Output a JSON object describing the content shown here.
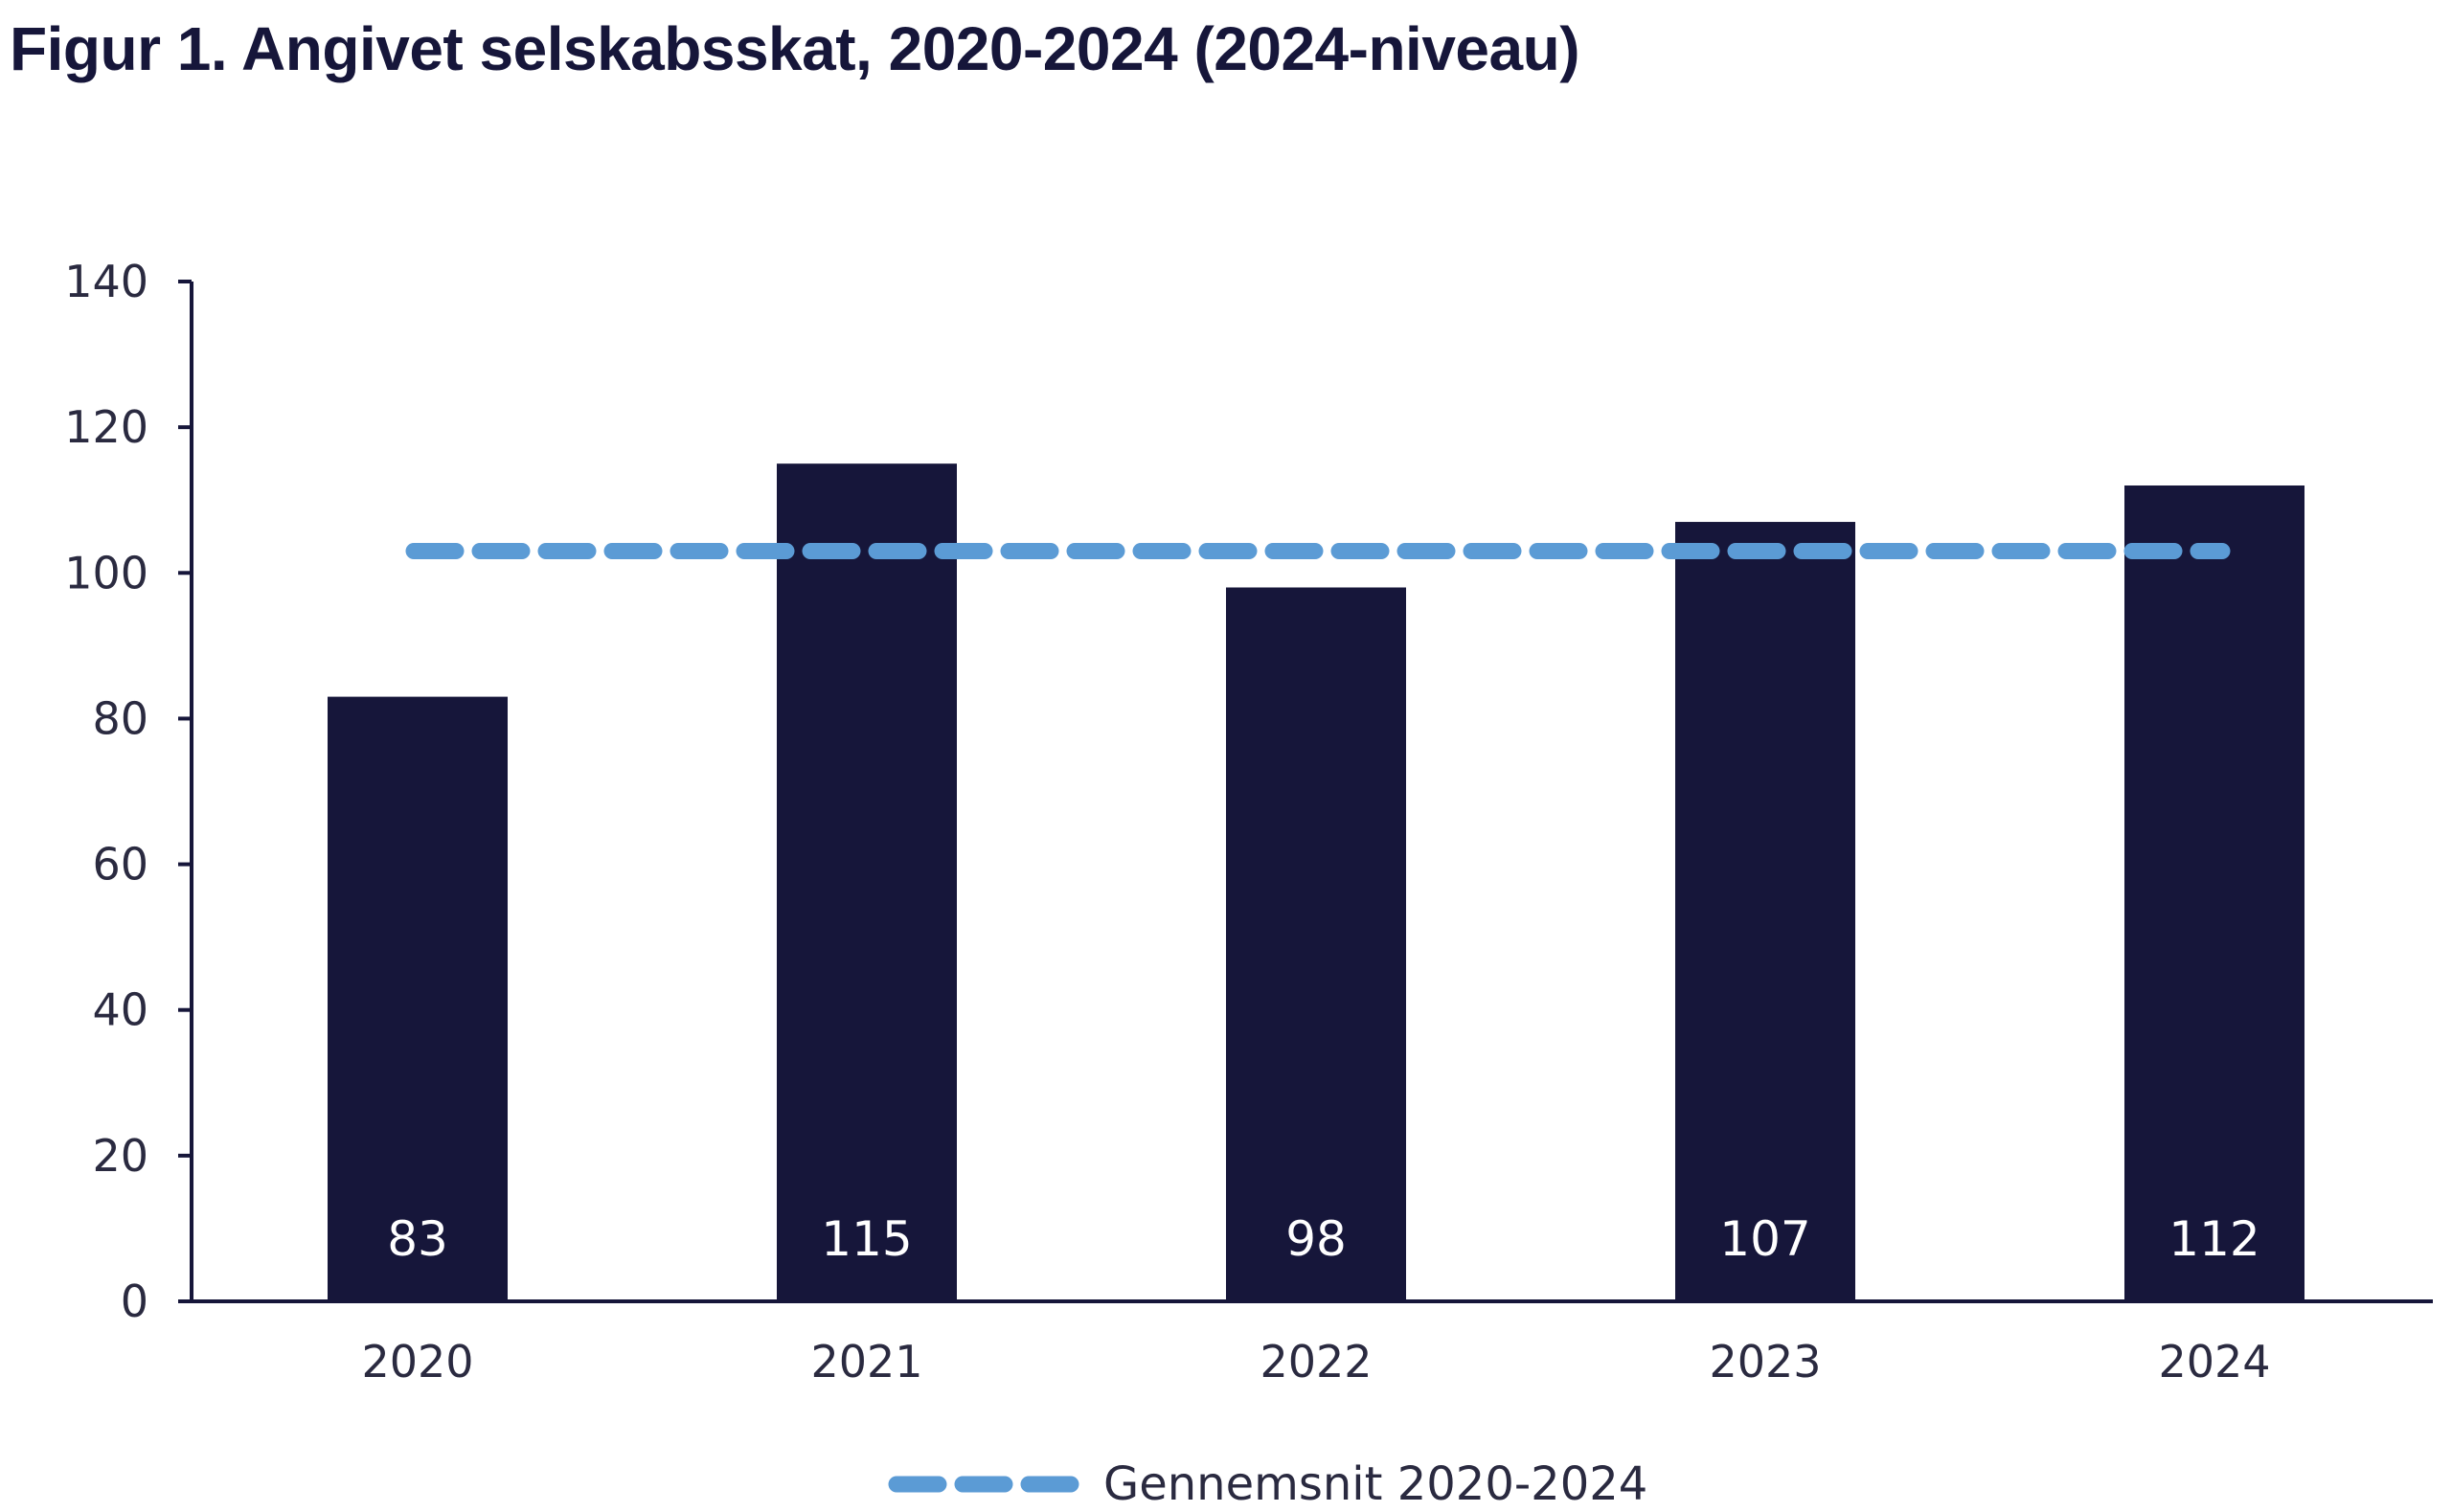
{
  "chart_data": {
    "type": "bar",
    "title": "Figur 1. Angivet selskabsskat, 2020-2024 (2024-niveau)",
    "categories": [
      "2020",
      "2021",
      "2022",
      "2023",
      "2024"
    ],
    "values": [
      83,
      115,
      98,
      107,
      112
    ],
    "data_labels": [
      "83",
      "115",
      "98",
      "107",
      "112"
    ],
    "reference_line": {
      "name": "Gennemsnit 2020-2024",
      "value": 103,
      "style": "dashed"
    },
    "ylim": [
      0,
      140
    ],
    "yticks": [
      0,
      20,
      40,
      60,
      80,
      100,
      120,
      140
    ],
    "xlabel": "",
    "ylabel": "",
    "grid": false,
    "legend": {
      "entries": [
        "Gennemsnit 2020-2024"
      ],
      "placement": "bottom-center"
    },
    "colors": {
      "bar": "#16163a",
      "line": "#5b9bd5",
      "text": "#2a2a40",
      "title": "#16163a"
    }
  }
}
